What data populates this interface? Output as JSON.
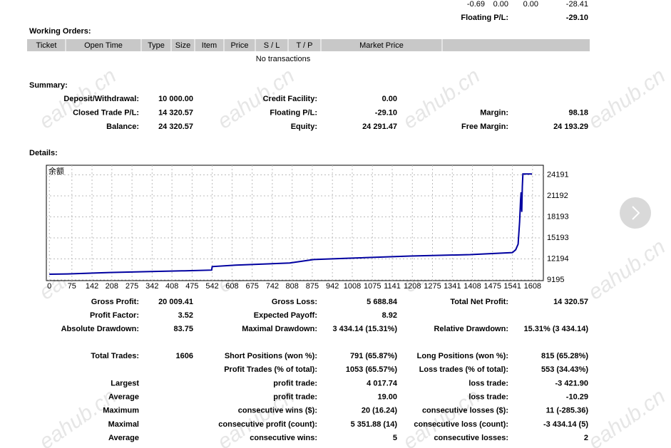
{
  "top_row": [
    "-0.69",
    "0.00",
    "0.00",
    "-28.41"
  ],
  "top_floating": [
    "Floating P/L:",
    "-29.10"
  ],
  "working_orders": {
    "title": "Working Orders:",
    "columns": [
      "Ticket",
      "Open Time",
      "Type",
      "Size",
      "Item",
      "Price",
      "S / L",
      "T / P",
      "Market Price"
    ],
    "empty": "No transactions"
  },
  "summary": {
    "title": "Summary:",
    "rows": [
      [
        [
          "Deposit/Withdrawal:",
          "10 000.00"
        ],
        [
          "Credit Facility:",
          "0.00"
        ],
        null
      ],
      [
        [
          "Closed Trade P/L:",
          "14 320.57"
        ],
        [
          "Floating P/L:",
          "-29.10"
        ],
        [
          "Margin:",
          "98.18"
        ]
      ],
      [
        [
          "Balance:",
          "24 320.57"
        ],
        [
          "Equity:",
          "24 291.47"
        ],
        [
          "Free Margin:",
          "24 193.29"
        ]
      ]
    ]
  },
  "details": {
    "title": "Details:"
  },
  "balance_chart": {
    "type": "line",
    "label": "余额",
    "color": "#0000a0",
    "grid": true,
    "x": [
      0,
      60,
      130,
      200,
      300,
      450,
      540,
      542,
      620,
      800,
      880,
      1000,
      1200,
      1400,
      1541,
      1552,
      1560,
      1565,
      1568,
      1570,
      1572,
      1574,
      1576,
      1580,
      1606
    ],
    "values": [
      10010,
      10050,
      10150,
      10250,
      10350,
      10500,
      10600,
      11100,
      11300,
      11600,
      12100,
      12300,
      12600,
      12800,
      13100,
      13500,
      14300,
      17500,
      20500,
      21700,
      18900,
      22500,
      24320,
      24320,
      24320
    ],
    "xlim": [
      -10,
      1644
    ],
    "ylim": [
      9093,
      25562
    ],
    "xticks": [
      0,
      75,
      142,
      208,
      275,
      342,
      408,
      475,
      542,
      608,
      675,
      742,
      808,
      875,
      942,
      1008,
      1075,
      1141,
      1208,
      1275,
      1341,
      1408,
      1475,
      1541,
      1608
    ],
    "yticks": [
      9195,
      12194,
      15193,
      18193,
      21192,
      24191
    ]
  },
  "stats_a": [
    [
      [
        "Gross Profit:",
        "20 009.41"
      ],
      [
        "Gross Loss:",
        "5 688.84"
      ],
      [
        "Total Net Profit:",
        "14 320.57"
      ]
    ],
    [
      [
        "Profit Factor:",
        "3.52"
      ],
      [
        "Expected Payoff:",
        "8.92"
      ],
      null
    ],
    [
      [
        "Absolute Drawdown:",
        "83.75"
      ],
      [
        "Maximal Drawdown:",
        "3 434.14 (15.31%)"
      ],
      [
        "Relative Drawdown:",
        "15.31% (3 434.14)"
      ]
    ]
  ],
  "stats_b": [
    [
      [
        "Total Trades:",
        "1606"
      ],
      [
        "Short Positions (won %):",
        "791 (65.87%)"
      ],
      [
        "Long Positions (won %):",
        "815 (65.28%)"
      ]
    ],
    [
      null,
      [
        "Profit Trades (% of total):",
        "1053 (65.57%)"
      ],
      [
        "Loss trades (% of total):",
        "553 (34.43%)"
      ]
    ],
    [
      [
        "Largest",
        null
      ],
      [
        "profit trade:",
        "4 017.74"
      ],
      [
        "loss trade:",
        "-3 421.90"
      ]
    ],
    [
      [
        "Average",
        null
      ],
      [
        "profit trade:",
        "19.00"
      ],
      [
        "loss trade:",
        "-10.29"
      ]
    ],
    [
      [
        "Maximum",
        null
      ],
      [
        "consecutive wins ($):",
        "20 (16.24)"
      ],
      [
        "consecutive losses ($):",
        "11 (-285.36)"
      ]
    ],
    [
      [
        "Maximal",
        null
      ],
      [
        "consecutive profit (count):",
        "5 351.88 (14)"
      ],
      [
        "consecutive loss (count):",
        "-3 434.14 (5)"
      ]
    ],
    [
      [
        "Average",
        null
      ],
      [
        "consecutive wins:",
        "5"
      ],
      [
        "consecutive losses:",
        "2"
      ]
    ]
  ],
  "watermark": "eahub.cn"
}
